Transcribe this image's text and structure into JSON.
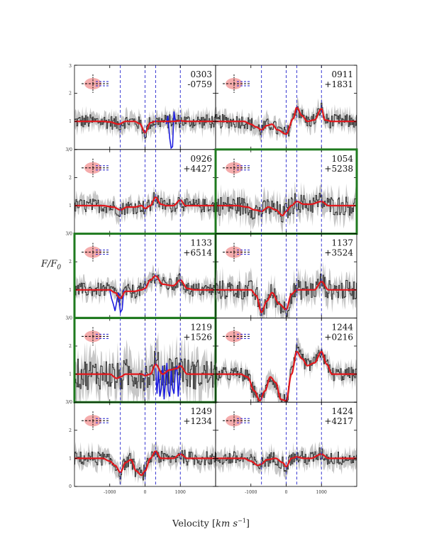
{
  "chart_data": {
    "type": "line",
    "xlabel": "Velocity [km s^-1]",
    "ylabel": "F/F_0",
    "xlim": [
      -2000,
      2000
    ],
    "ylim": [
      0,
      3
    ],
    "x_ticks": [
      -1000,
      0,
      1000
    ],
    "x_tick_labels": [
      "-1000",
      "0",
      "1000"
    ],
    "y_ticks": [
      0,
      1,
      2,
      3
    ],
    "y_tick_labels": [
      "0",
      "1",
      "2",
      "3"
    ],
    "row_boundary_labels": [
      "3/0",
      "3/0",
      "3/0",
      "3/0"
    ],
    "reference_lines_velocity": [
      -700,
      0,
      300,
      1000
    ],
    "grid": false,
    "panels": [
      {
        "name_top": "0303",
        "name_bottom": "-0759",
        "highlight": false,
        "model": {
          "x": [
            -2000,
            -1200,
            -1000,
            -750,
            -550,
            -300,
            -150,
            0,
            150,
            300,
            500,
            800,
            1000,
            1200,
            2000
          ],
          "y": [
            1.0,
            1.0,
            0.98,
            0.9,
            1.0,
            1.0,
            0.92,
            0.6,
            0.95,
            1.0,
            1.0,
            1.0,
            1.02,
            1.0,
            1.0
          ]
        },
        "blue": {
          "x": [
            600,
            650,
            700,
            740,
            780,
            820,
            860
          ],
          "y": [
            0.9,
            1.2,
            0.4,
            0.05,
            0.1,
            1.35,
            1.0
          ]
        }
      },
      {
        "name_top": "0911",
        "name_bottom": "+1831",
        "highlight": false,
        "model": {
          "x": [
            -2000,
            -1200,
            -1000,
            -850,
            -700,
            -550,
            -400,
            -250,
            0,
            200,
            300,
            450,
            600,
            800,
            1000,
            1100,
            1300,
            2000
          ],
          "y": [
            1.0,
            1.0,
            0.9,
            0.8,
            0.7,
            0.85,
            0.9,
            0.7,
            0.55,
            1.1,
            1.5,
            1.2,
            1.0,
            1.05,
            1.45,
            1.05,
            1.0,
            1.0
          ]
        },
        "blue": null
      },
      {
        "name_top": "0926",
        "name_bottom": "+4427",
        "highlight": false,
        "model": {
          "x": [
            -2000,
            -1200,
            -900,
            -700,
            -500,
            -300,
            -100,
            0,
            150,
            300,
            450,
            600,
            800,
            1000,
            1150,
            1300,
            2000
          ],
          "y": [
            1.0,
            1.0,
            0.95,
            0.85,
            0.95,
            0.95,
            1.0,
            0.9,
            1.0,
            1.3,
            1.05,
            1.0,
            1.0,
            1.2,
            1.0,
            1.0,
            1.0
          ]
        },
        "blue": null
      },
      {
        "name_top": "1054",
        "name_bottom": "+5238",
        "highlight": true,
        "model": {
          "x": [
            -2000,
            -1400,
            -1100,
            -900,
            -700,
            -500,
            -300,
            -100,
            0,
            150,
            300,
            500,
            700,
            1000,
            1200,
            1400,
            2000
          ],
          "y": [
            1.0,
            1.0,
            0.95,
            0.85,
            0.8,
            0.95,
            0.85,
            0.65,
            0.8,
            1.0,
            1.15,
            1.05,
            1.05,
            1.15,
            1.0,
            1.0,
            1.0
          ]
        },
        "blue": null
      },
      {
        "name_top": "1133",
        "name_bottom": "+6514",
        "highlight": true,
        "model": {
          "x": [
            -2000,
            -1200,
            -1000,
            -850,
            -700,
            -550,
            -300,
            -100,
            0,
            150,
            300,
            500,
            800,
            1000,
            1200,
            1400,
            2000
          ],
          "y": [
            1.0,
            1.0,
            1.0,
            0.9,
            0.7,
            0.95,
            0.95,
            1.0,
            1.05,
            1.35,
            1.5,
            1.2,
            1.15,
            1.35,
            1.05,
            1.0,
            1.0
          ]
        },
        "blue": {
          "x": [
            -1000,
            -950,
            -900,
            -850,
            -800,
            -750,
            -700,
            -650,
            -600
          ],
          "y": [
            1.0,
            0.7,
            0.5,
            0.25,
            0.6,
            0.9,
            0.2,
            0.3,
            1.0
          ]
        }
      },
      {
        "name_top": "1137",
        "name_bottom": "+3524",
        "highlight": false,
        "model": {
          "x": [
            -2000,
            -1000,
            -850,
            -700,
            -550,
            -400,
            -200,
            0,
            150,
            300,
            500,
            800,
            1000,
            1200,
            2000
          ],
          "y": [
            1.0,
            1.0,
            0.8,
            0.2,
            0.6,
            0.9,
            0.5,
            0.3,
            0.85,
            1.0,
            1.0,
            1.0,
            1.3,
            1.0,
            1.0
          ]
        },
        "blue": null
      },
      {
        "name_top": "1219",
        "name_bottom": "+1526",
        "highlight": true,
        "model": {
          "x": [
            -2000,
            -1200,
            -1000,
            -800,
            -700,
            -550,
            -300,
            -100,
            0,
            150,
            300,
            500,
            700,
            900,
            1000,
            1200,
            2000
          ],
          "y": [
            1.0,
            1.0,
            1.0,
            0.85,
            0.9,
            1.0,
            1.0,
            1.0,
            0.95,
            1.0,
            1.35,
            1.0,
            1.15,
            1.2,
            1.3,
            1.0,
            1.0
          ]
        },
        "blue": {
          "x": [
            300,
            340,
            380,
            420,
            460,
            500,
            540,
            580,
            620,
            660,
            700,
            740,
            780,
            820,
            860,
            900,
            940,
            980,
            1000
          ],
          "y": [
            1.2,
            0.3,
            1.1,
            0.2,
            0.5,
            1.3,
            0.1,
            0.8,
            1.4,
            0.4,
            0.2,
            1.2,
            0.5,
            0.3,
            1.1,
            1.3,
            0.2,
            0.9,
            1.0
          ]
        }
      },
      {
        "name_top": "1244",
        "name_bottom": "+0216",
        "highlight": false,
        "model": {
          "x": [
            -2000,
            -1300,
            -1100,
            -900,
            -750,
            -600,
            -450,
            -300,
            -150,
            0,
            150,
            300,
            450,
            600,
            800,
            1000,
            1150,
            1300,
            2000
          ],
          "y": [
            1.0,
            1.0,
            0.9,
            0.4,
            0.05,
            0.4,
            0.9,
            0.7,
            0.1,
            0.05,
            1.0,
            1.8,
            1.55,
            1.3,
            1.4,
            1.8,
            1.35,
            1.0,
            1.0
          ]
        },
        "blue": null
      },
      {
        "name_top": "1249",
        "name_bottom": "+1234",
        "highlight": false,
        "model": {
          "x": [
            -2000,
            -1200,
            -1000,
            -850,
            -700,
            -550,
            -400,
            -250,
            -100,
            0,
            150,
            300,
            450,
            600,
            800,
            1000,
            1200,
            2000
          ],
          "y": [
            1.0,
            1.0,
            0.9,
            0.75,
            0.5,
            0.85,
            0.95,
            0.55,
            0.4,
            0.55,
            1.0,
            1.25,
            1.0,
            1.0,
            1.0,
            1.15,
            1.0,
            1.0
          ]
        },
        "blue": null
      },
      {
        "name_top": "1424",
        "name_bottom": "+4217",
        "highlight": false,
        "model": {
          "x": [
            -2000,
            -1200,
            -1000,
            -800,
            -700,
            -550,
            -300,
            -100,
            0,
            150,
            300,
            500,
            700,
            1000,
            1200,
            2000
          ],
          "y": [
            1.0,
            1.0,
            0.9,
            0.75,
            0.8,
            0.95,
            1.0,
            0.85,
            0.7,
            1.0,
            1.05,
            1.0,
            1.0,
            1.15,
            1.0,
            1.0
          ]
        },
        "blue": null
      }
    ]
  },
  "colors": {
    "model": "#e3171c",
    "data": "#2b2b2b",
    "error_band": "#bdbdbd",
    "blue": "#1e1ee0",
    "vlines": "#2222cc",
    "highlight_border": "#1f7a1f",
    "inset_ellipse": "#f4a3a3",
    "axes": "#000000"
  },
  "labels": {
    "ylabel": "F/F",
    "ylabel_sub": "0",
    "xlabel": "Velocity [",
    "xlabel_unit": "km s",
    "xlabel_exp": "−1",
    "xlabel_end": "]"
  }
}
